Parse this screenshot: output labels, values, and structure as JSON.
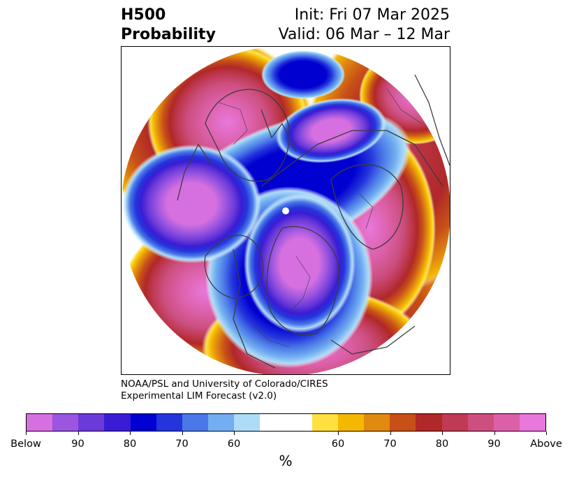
{
  "title": {
    "left_line1": "H500",
    "left_line2": "Probability",
    "right_line1": "Init: Fri 07 Mar 2025",
    "right_line2": "Valid: 06 Mar – 12 Mar"
  },
  "credit": {
    "line1": "NOAA/PSL and University of Colorado/CIRES",
    "line2": "Experimental LIM Forecast (v2.0)"
  },
  "colorbar": {
    "colors": [
      "#d670e0",
      "#9b55e0",
      "#6b3ad8",
      "#3a1cd4",
      "#0000d0",
      "#2435dc",
      "#4a78e8",
      "#72aef0",
      "#aedcf8",
      "#ffffff",
      "#ffffff",
      "#ffe040",
      "#f4b800",
      "#e08a10",
      "#c85018",
      "#b02828",
      "#c03a55",
      "#cc4f80",
      "#dc60a8",
      "#e878dc"
    ],
    "ticks": [
      "Below",
      "90",
      "80",
      "70",
      "60",
      "60",
      "70",
      "80",
      "90",
      "Above"
    ],
    "units": "%"
  }
}
